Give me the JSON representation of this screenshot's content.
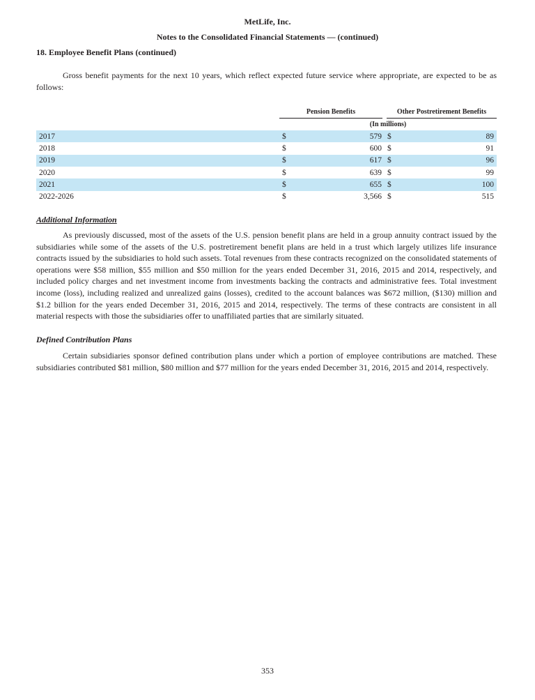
{
  "header": {
    "company": "MetLife, Inc.",
    "subtitle": "Notes to the Consolidated Financial Statements — (continued)"
  },
  "section_title": "18. Employee Benefit Plans (continued)",
  "intro": "Gross benefit payments for the next 10 years, which reflect expected future service where appropriate, are expected to be as follows:",
  "table": {
    "columns": [
      "Pension Benefits",
      "Other Postretirement Benefits"
    ],
    "unit": "(In millions)",
    "currency": "$",
    "rows": [
      {
        "year": "2017",
        "pension": "579",
        "other": "89"
      },
      {
        "year": "2018",
        "pension": "600",
        "other": "91"
      },
      {
        "year": "2019",
        "pension": "617",
        "other": "96"
      },
      {
        "year": "2020",
        "pension": "639",
        "other": "99"
      },
      {
        "year": "2021",
        "pension": "655",
        "other": "100"
      },
      {
        "year": "2022-2026",
        "pension": "3,566",
        "other": "515"
      }
    ],
    "shade_color": "#c5e6f5"
  },
  "additional": {
    "title": "Additional Information",
    "text": "As previously discussed, most of the assets of the U.S. pension benefit plans are held in a group annuity contract issued by the subsidiaries while some of the assets of the U.S. postretirement benefit plans are held in a trust which largely utilizes life insurance contracts issued by the subsidiaries to hold such assets. Total revenues from these contracts recognized on the consolidated statements of operations were $58 million, $55 million and $50 million for the years ended December 31, 2016, 2015 and 2014, respectively, and included policy charges and net investment income from investments backing the contracts and administrative fees. Total investment income (loss), including realized and unrealized gains (losses), credited to the account balances was $672 million, ($130) million and $1.2 billion for the years ended December 31, 2016, 2015 and 2014, respectively. The terms of these contracts are consistent in all material respects with those the subsidiaries offer to unaffiliated parties that are similarly situated."
  },
  "defined": {
    "title": "Defined Contribution Plans",
    "text": "Certain subsidiaries sponsor defined contribution plans under which a portion of employee contributions are matched. These subsidiaries contributed $81 million, $80 million and $77 million for the years ended December 31, 2016, 2015 and 2014, respectively."
  },
  "page_number": "353"
}
